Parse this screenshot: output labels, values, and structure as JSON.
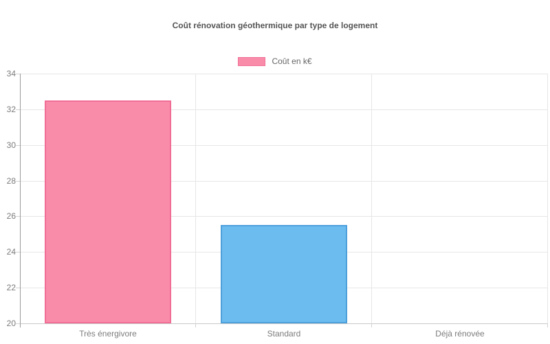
{
  "chart_data": {
    "type": "bar",
    "title": "Coût rénovation géothermique par type de logement",
    "legend": {
      "label": "Coût en k€",
      "position": "top-center",
      "swatch_fill": "#F98DA9",
      "swatch_border": "#F06E96"
    },
    "categories": [
      "Très énergivore",
      "Standard",
      "Déjà rénovée"
    ],
    "series": [
      {
        "name": "Coût en k€",
        "values": [
          32.5,
          25.5,
          20
        ]
      }
    ],
    "xlabel": "",
    "ylabel": "",
    "ylim": [
      20,
      34
    ],
    "ytick_step": 2,
    "ytick_labels": [
      "20",
      "22",
      "24",
      "26",
      "28",
      "30",
      "32",
      "34"
    ],
    "grid": true,
    "bar_fill_colors": [
      "#F98DA9",
      "#6CBCF0",
      null
    ],
    "bar_border_colors": [
      "#F06E96",
      "#4D9FDB",
      null
    ],
    "background_color": "#FFFFFF",
    "grid_color": "#E6E6E6"
  }
}
